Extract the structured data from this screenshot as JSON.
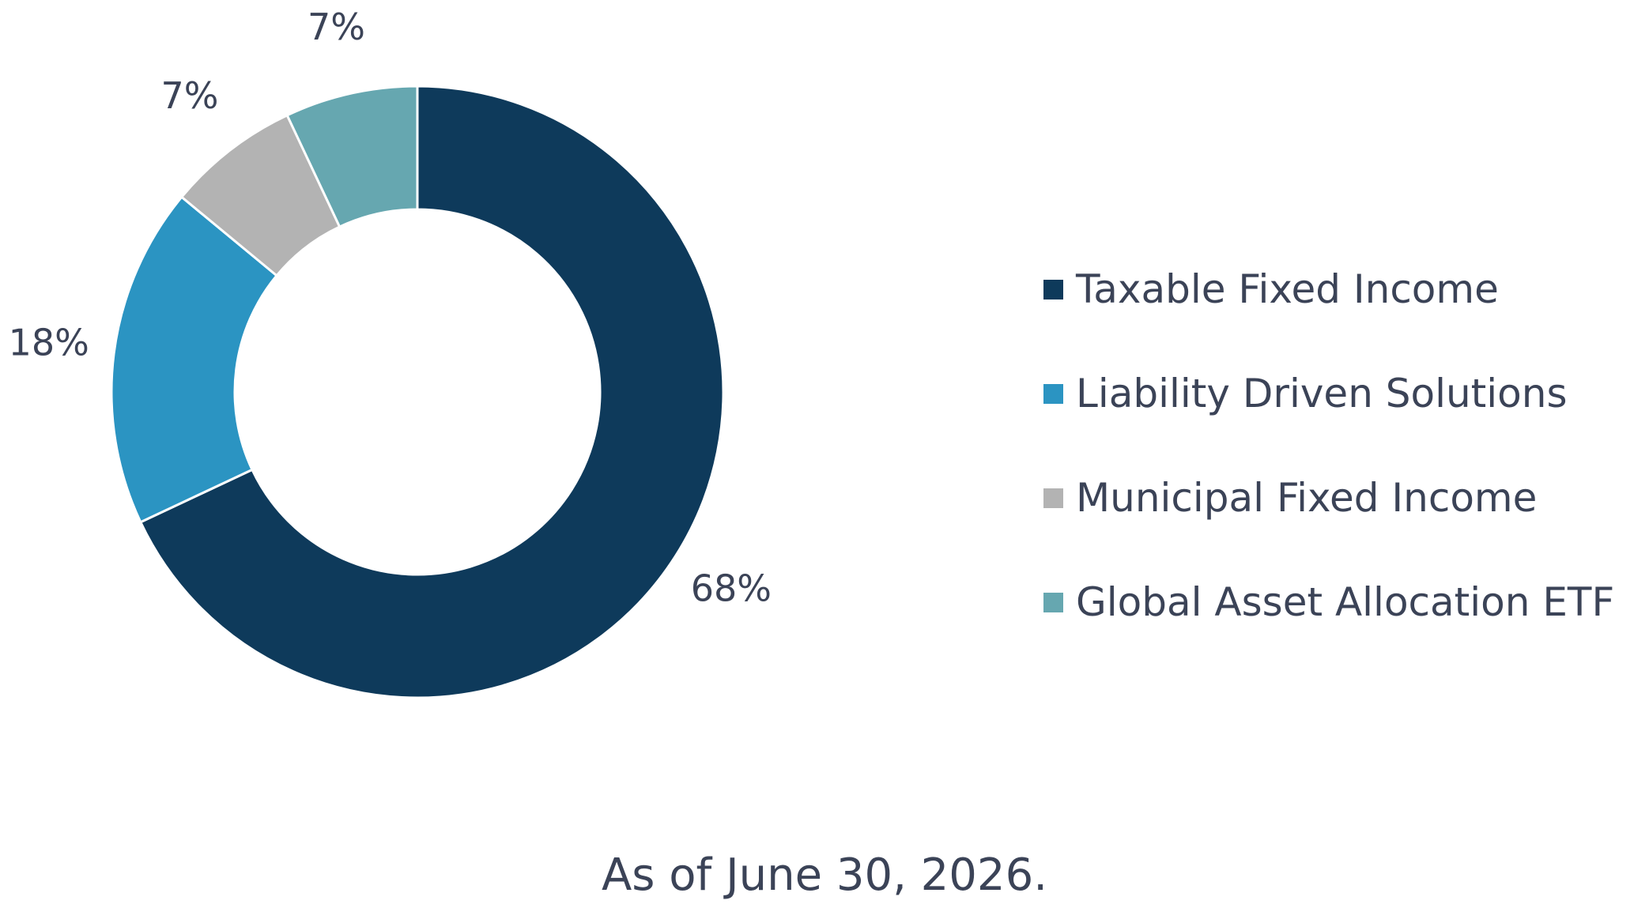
{
  "chart_data": {
    "type": "pie",
    "donut": true,
    "slices": [
      {
        "name": "Taxable Fixed Income",
        "value": 68,
        "label": "68%",
        "color": "#0e3a5b"
      },
      {
        "name": "Liability Driven Solutions",
        "value": 18,
        "label": "18%",
        "color": "#2b94c2"
      },
      {
        "name": "Municipal Fixed Income",
        "value": 7,
        "label": "7%",
        "color": "#b3b3b3"
      },
      {
        "name": "Global Asset Allocation ETF",
        "value": 7,
        "label": "7%",
        "color": "#66a7b0"
      }
    ],
    "legend_position": "right"
  },
  "footnote": "As of June 30, 2026."
}
